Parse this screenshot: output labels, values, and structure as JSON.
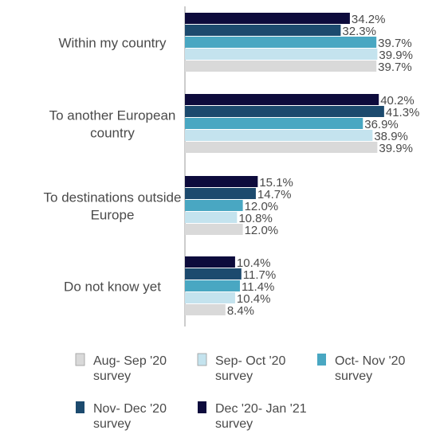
{
  "chart_data": {
    "type": "bar",
    "orientation": "horizontal",
    "value_unit": "%",
    "categories": [
      [
        "Within my country"
      ],
      [
        "To another European",
        "country"
      ],
      [
        "To destinations outside",
        "Europe"
      ],
      [
        "Do not know yet"
      ]
    ],
    "series": [
      {
        "name": [
          "Dec '20- Jan '21",
          "survey"
        ],
        "color": "#0d0b3c",
        "values": [
          34.2,
          40.2,
          15.1,
          10.4
        ]
      },
      {
        "name": [
          "Nov- Dec '20",
          "survey"
        ],
        "color": "#1c4a6e",
        "values": [
          32.3,
          41.3,
          14.7,
          11.7
        ]
      },
      {
        "name": [
          "Oct- Nov '20",
          "survey"
        ],
        "color": "#49a7c2",
        "values": [
          39.7,
          36.9,
          12.0,
          11.4
        ]
      },
      {
        "name": [
          "Sep- Oct '20",
          "survey"
        ],
        "color": "#c4e3ee",
        "values": [
          39.9,
          38.9,
          10.8,
          10.4
        ]
      },
      {
        "name": [
          "Aug- Sep '20",
          "survey"
        ],
        "color": "#d9d9d9",
        "values": [
          39.7,
          39.9,
          12.0,
          8.4
        ]
      }
    ],
    "legend_order": [
      4,
      3,
      2,
      1,
      0
    ],
    "legend_position": "bottom",
    "xlim": [
      0,
      45
    ],
    "grid": false
  }
}
